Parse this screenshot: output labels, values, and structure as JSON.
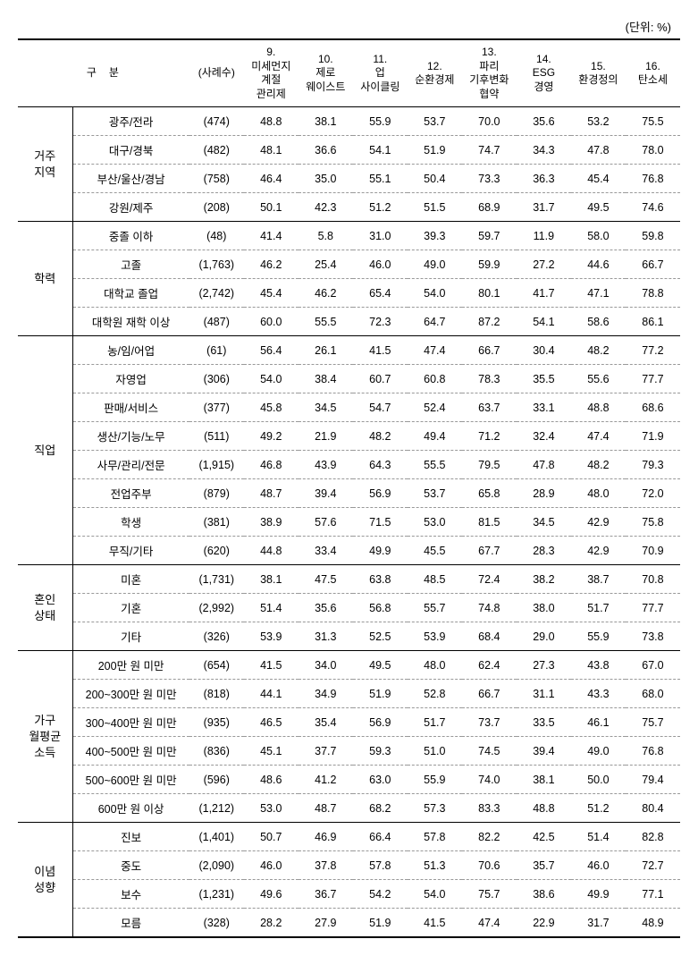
{
  "unit_label": "(단위: %)",
  "header": {
    "category": "구분",
    "sample": "(사례수)",
    "cols": [
      "9.\n미세먼지\n계절\n관리제",
      "10.\n제로\n웨이스트",
      "11.\n업\n사이클링",
      "12.\n순환경제",
      "13.\n파리\n기후변화\n협약",
      "14.\nESG\n경영",
      "15.\n환경정의",
      "16.\n탄소세"
    ]
  },
  "groups": [
    {
      "label": "거주\n지역",
      "rows": [
        {
          "sub": "광주/전라",
          "n": "(474)",
          "vals": [
            "48.8",
            "38.1",
            "55.9",
            "53.7",
            "70.0",
            "35.6",
            "53.2",
            "75.5"
          ]
        },
        {
          "sub": "대구/경북",
          "n": "(482)",
          "vals": [
            "48.1",
            "36.6",
            "54.1",
            "51.9",
            "74.7",
            "34.3",
            "47.8",
            "78.0"
          ]
        },
        {
          "sub": "부산/울산/경남",
          "n": "(758)",
          "vals": [
            "46.4",
            "35.0",
            "55.1",
            "50.4",
            "73.3",
            "36.3",
            "45.4",
            "76.8"
          ]
        },
        {
          "sub": "강원/제주",
          "n": "(208)",
          "vals": [
            "50.1",
            "42.3",
            "51.2",
            "51.5",
            "68.9",
            "31.7",
            "49.5",
            "74.6"
          ]
        }
      ]
    },
    {
      "label": "학력",
      "rows": [
        {
          "sub": "중졸 이하",
          "n": "(48)",
          "vals": [
            "41.4",
            "5.8",
            "31.0",
            "39.3",
            "59.7",
            "11.9",
            "58.0",
            "59.8"
          ]
        },
        {
          "sub": "고졸",
          "n": "(1,763)",
          "vals": [
            "46.2",
            "25.4",
            "46.0",
            "49.0",
            "59.9",
            "27.2",
            "44.6",
            "66.7"
          ]
        },
        {
          "sub": "대학교 졸업",
          "n": "(2,742)",
          "vals": [
            "45.4",
            "46.2",
            "65.4",
            "54.0",
            "80.1",
            "41.7",
            "47.1",
            "78.8"
          ]
        },
        {
          "sub": "대학원 재학 이상",
          "n": "(487)",
          "vals": [
            "60.0",
            "55.5",
            "72.3",
            "64.7",
            "87.2",
            "54.1",
            "58.6",
            "86.1"
          ]
        }
      ]
    },
    {
      "label": "직업",
      "rows": [
        {
          "sub": "농/임/어업",
          "n": "(61)",
          "vals": [
            "56.4",
            "26.1",
            "41.5",
            "47.4",
            "66.7",
            "30.4",
            "48.2",
            "77.2"
          ]
        },
        {
          "sub": "자영업",
          "n": "(306)",
          "vals": [
            "54.0",
            "38.4",
            "60.7",
            "60.8",
            "78.3",
            "35.5",
            "55.6",
            "77.7"
          ]
        },
        {
          "sub": "판매/서비스",
          "n": "(377)",
          "vals": [
            "45.8",
            "34.5",
            "54.7",
            "52.4",
            "63.7",
            "33.1",
            "48.8",
            "68.6"
          ]
        },
        {
          "sub": "생산/기능/노무",
          "n": "(511)",
          "vals": [
            "49.2",
            "21.9",
            "48.2",
            "49.4",
            "71.2",
            "32.4",
            "47.4",
            "71.9"
          ]
        },
        {
          "sub": "사무/관리/전문",
          "n": "(1,915)",
          "vals": [
            "46.8",
            "43.9",
            "64.3",
            "55.5",
            "79.5",
            "47.8",
            "48.2",
            "79.3"
          ]
        },
        {
          "sub": "전업주부",
          "n": "(879)",
          "vals": [
            "48.7",
            "39.4",
            "56.9",
            "53.7",
            "65.8",
            "28.9",
            "48.0",
            "72.0"
          ]
        },
        {
          "sub": "학생",
          "n": "(381)",
          "vals": [
            "38.9",
            "57.6",
            "71.5",
            "53.0",
            "81.5",
            "34.5",
            "42.9",
            "75.8"
          ]
        },
        {
          "sub": "무직/기타",
          "n": "(620)",
          "vals": [
            "44.8",
            "33.4",
            "49.9",
            "45.5",
            "67.7",
            "28.3",
            "42.9",
            "70.9"
          ]
        }
      ]
    },
    {
      "label": "혼인\n상태",
      "rows": [
        {
          "sub": "미혼",
          "n": "(1,731)",
          "vals": [
            "38.1",
            "47.5",
            "63.8",
            "48.5",
            "72.4",
            "38.2",
            "38.7",
            "70.8"
          ]
        },
        {
          "sub": "기혼",
          "n": "(2,992)",
          "vals": [
            "51.4",
            "35.6",
            "56.8",
            "55.7",
            "74.8",
            "38.0",
            "51.7",
            "77.7"
          ]
        },
        {
          "sub": "기타",
          "n": "(326)",
          "vals": [
            "53.9",
            "31.3",
            "52.5",
            "53.9",
            "68.4",
            "29.0",
            "55.9",
            "73.8"
          ]
        }
      ]
    },
    {
      "label": "가구\n월평균\n소득",
      "rows": [
        {
          "sub": "200만 원 미만",
          "n": "(654)",
          "vals": [
            "41.5",
            "34.0",
            "49.5",
            "48.0",
            "62.4",
            "27.3",
            "43.8",
            "67.0"
          ]
        },
        {
          "sub": "200~300만 원 미만",
          "n": "(818)",
          "vals": [
            "44.1",
            "34.9",
            "51.9",
            "52.8",
            "66.7",
            "31.1",
            "43.3",
            "68.0"
          ]
        },
        {
          "sub": "300~400만 원 미만",
          "n": "(935)",
          "vals": [
            "46.5",
            "35.4",
            "56.9",
            "51.7",
            "73.7",
            "33.5",
            "46.1",
            "75.7"
          ]
        },
        {
          "sub": "400~500만 원 미만",
          "n": "(836)",
          "vals": [
            "45.1",
            "37.7",
            "59.3",
            "51.0",
            "74.5",
            "39.4",
            "49.0",
            "76.8"
          ]
        },
        {
          "sub": "500~600만 원 미만",
          "n": "(596)",
          "vals": [
            "48.6",
            "41.2",
            "63.0",
            "55.9",
            "74.0",
            "38.1",
            "50.0",
            "79.4"
          ]
        },
        {
          "sub": "600만 원 이상",
          "n": "(1,212)",
          "vals": [
            "53.0",
            "48.7",
            "68.2",
            "57.3",
            "83.3",
            "48.8",
            "51.2",
            "80.4"
          ]
        }
      ]
    },
    {
      "label": "이념\n성향",
      "rows": [
        {
          "sub": "진보",
          "n": "(1,401)",
          "vals": [
            "50.7",
            "46.9",
            "66.4",
            "57.8",
            "82.2",
            "42.5",
            "51.4",
            "82.8"
          ]
        },
        {
          "sub": "중도",
          "n": "(2,090)",
          "vals": [
            "46.0",
            "37.8",
            "57.8",
            "51.3",
            "70.6",
            "35.7",
            "46.0",
            "72.7"
          ]
        },
        {
          "sub": "보수",
          "n": "(1,231)",
          "vals": [
            "49.6",
            "36.7",
            "54.2",
            "54.0",
            "75.7",
            "38.6",
            "49.9",
            "77.1"
          ]
        },
        {
          "sub": "모름",
          "n": "(328)",
          "vals": [
            "28.2",
            "27.9",
            "51.9",
            "41.5",
            "47.4",
            "22.9",
            "31.7",
            "48.9"
          ]
        }
      ]
    }
  ]
}
